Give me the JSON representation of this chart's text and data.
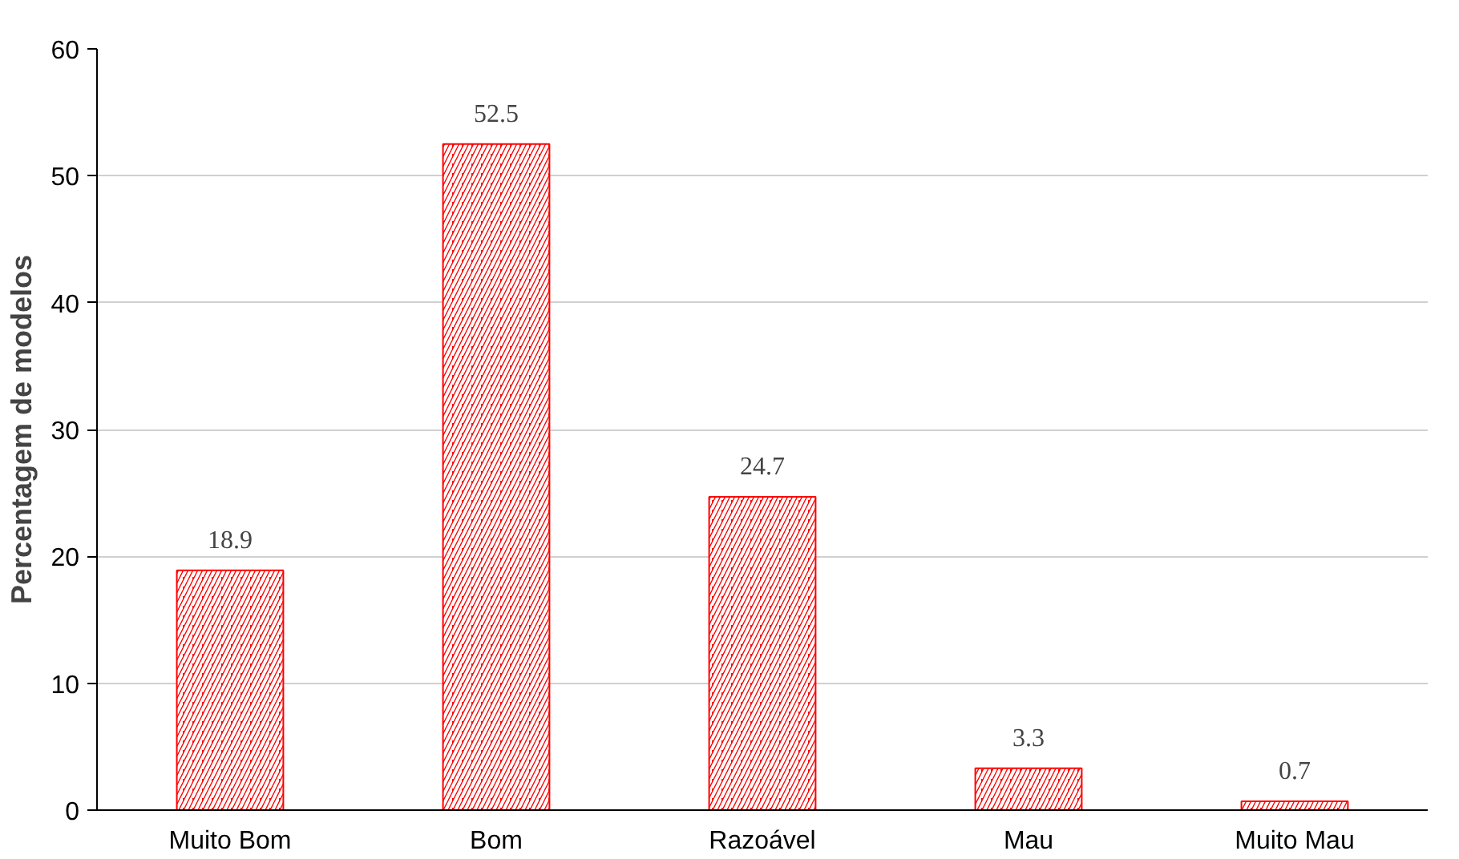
{
  "chart_data": {
    "type": "bar",
    "ylabel": "Percentagem de modelos",
    "categories": [
      "Muito Bom",
      "Bom",
      "Razoável",
      "Mau",
      "Muito Mau"
    ],
    "values": [
      18.9,
      52.5,
      24.7,
      3.3,
      0.7
    ],
    "color": "#ff0000",
    "ylim": [
      0,
      60
    ],
    "yticks": [
      0,
      10,
      20,
      30,
      40,
      50,
      60
    ],
    "grid": "y",
    "data_labels": true
  }
}
